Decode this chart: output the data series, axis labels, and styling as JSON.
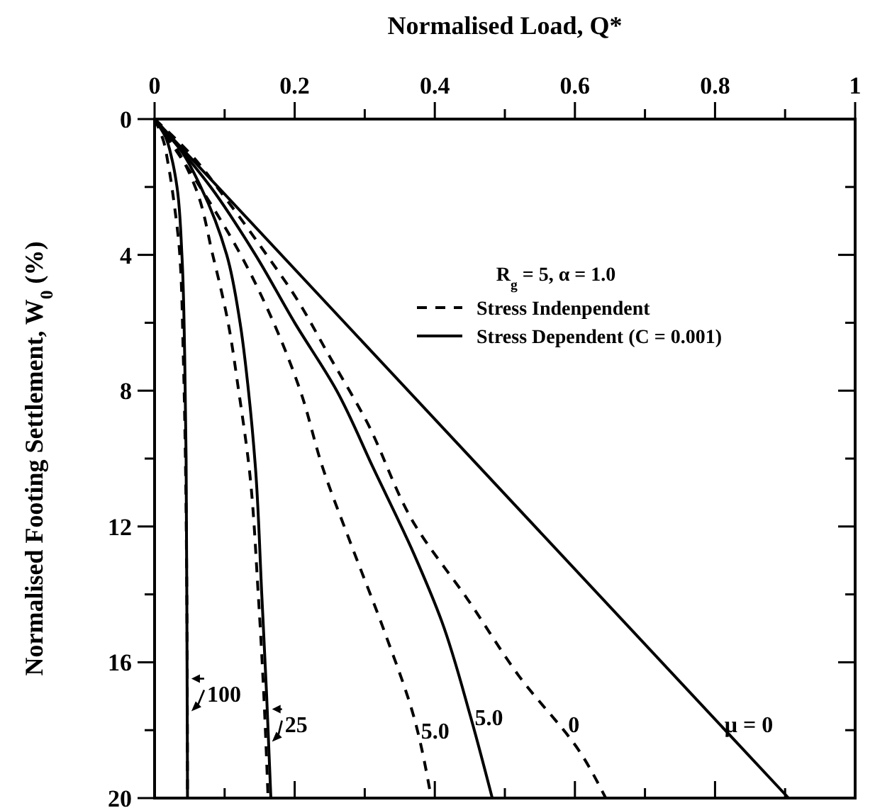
{
  "chart_data": {
    "type": "line",
    "xlabel": "Normalised Load, Q*",
    "ylabel": "Normalised Footing Settlement, W$_{0}$ (%)",
    "legend_title": "R$_{g}$ = 5, α = 1.0",
    "legend": "top right",
    "xlim": [
      0,
      1
    ],
    "ylim": [
      20,
      0
    ],
    "xticks": [
      0,
      {
        "value": 0.1,
        "label": null
      },
      0.2,
      {
        "value": 0.3,
        "label": null
      },
      0.4,
      {
        "value": 0.5,
        "label": null
      },
      0.6,
      {
        "value": 0.7,
        "label": null
      },
      0.8,
      {
        "value": 0.9,
        "label": null
      },
      1
    ],
    "yticks": [
      0,
      {
        "value": 2,
        "label": null
      },
      4,
      {
        "value": 6,
        "label": null
      },
      8,
      {
        "value": 10,
        "label": null
      },
      12,
      {
        "value": 14,
        "label": null
      },
      16,
      {
        "value": 18,
        "label": null
      },
      20
    ],
    "marker": "none",
    "series": [
      {
        "name": "Stress Indenpendent",
        "color": "#000000",
        "line_style": "dashed",
        "x": [
          0,
          0.05,
          0.1,
          0.16,
          0.2,
          0.25,
          0.3,
          0.373,
          0.447,
          0.52,
          0.609,
          0.644
        ],
        "values": [
          0,
          1,
          2.3,
          4,
          5.2,
          7,
          8.8,
          12,
          14.15,
          16.4,
          18.7,
          20
        ]
      },
      {
        "name": "Stress Dependent (C = 0.001)",
        "color": "#000000",
        "line_style": "solid",
        "x": [
          0,
          0.905
        ],
        "values": [
          0,
          20
        ]
      },
      {
        "color": "#000000",
        "line_style": "dashed",
        "x": [
          0,
          0.065,
          0.123,
          0.17,
          0.208,
          0.24,
          0.28,
          0.33,
          0.37,
          0.395
        ],
        "values": [
          0,
          2,
          4,
          6,
          8,
          10.27,
          12.5,
          15.2,
          17.6,
          20
        ]
      },
      {
        "color": "#000000",
        "line_style": "solid",
        "x": [
          0,
          0.08,
          0.144,
          0.2,
          0.26,
          0.312,
          0.37,
          0.41,
          0.451,
          0.482
        ],
        "values": [
          0,
          2,
          4,
          6,
          8,
          10.27,
          12.8,
          14.8,
          17.6,
          20
        ]
      },
      {
        "color": "#000000",
        "line_style": "dashed",
        "x": [
          0,
          0.035,
          0.058,
          0.083,
          0.105,
          0.12,
          0.135,
          0.148,
          0.156,
          0.162
        ],
        "values": [
          0,
          1,
          2,
          4,
          6,
          8,
          10.27,
          14,
          17,
          20
        ]
      },
      {
        "color": "#000000",
        "line_style": "solid",
        "x": [
          0,
          0.04,
          0.066,
          0.103,
          0.122,
          0.134,
          0.144,
          0.153,
          0.16,
          0.166
        ],
        "values": [
          0,
          1,
          2,
          4,
          6,
          8,
          10.27,
          14,
          17,
          20
        ]
      },
      {
        "color": "#000000",
        "line_style": "dashed",
        "x": [
          0,
          0.012,
          0.02,
          0.028,
          0.036,
          0.041,
          0.044,
          0.046,
          0.047
        ],
        "values": [
          0,
          0.6,
          1.4,
          2.5,
          4,
          7,
          10,
          14,
          20
        ]
      },
      {
        "color": "#000000",
        "line_style": "solid",
        "x": [
          0,
          0.015,
          0.025,
          0.032,
          0.039,
          0.043,
          0.045,
          0.046,
          0.047
        ],
        "values": [
          0,
          0.5,
          1.2,
          2,
          4,
          7,
          10,
          14,
          20
        ]
      }
    ],
    "annotations": [
      "100",
      "25",
      "5.0",
      "5.0",
      "0",
      "μ = 0"
    ]
  }
}
